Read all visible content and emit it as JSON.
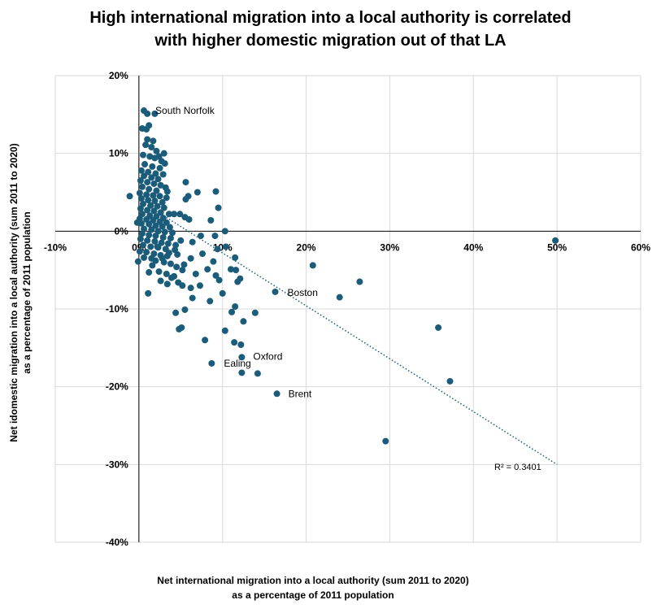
{
  "title": {
    "line1": "High international migration into a local authority is correlated",
    "line2": "with higher domestic migration out of that LA"
  },
  "chart_data": {
    "type": "scatter",
    "title": "High international migration into a local authority is correlated with higher domestic migration out of that LA",
    "xlabel": [
      "Net international migration into a local authority (sum 2011 to 2020)",
      "as a percentage of 2011 population"
    ],
    "ylabel": [
      "Net idomestic migration into a local authority (sum 2011 to 2020)",
      "as a percentage of 2011 population"
    ],
    "xlim": [
      -10,
      60
    ],
    "ylim": [
      -40,
      20
    ],
    "x_ticks": [
      -10,
      0,
      10,
      20,
      30,
      40,
      50,
      60
    ],
    "y_ticks": [
      -40,
      -30,
      -20,
      -10,
      0,
      10,
      20
    ],
    "x_tick_labels": [
      "-10%",
      "0%",
      "10%",
      "20%",
      "30%",
      "40%",
      "50%",
      "60%"
    ],
    "y_tick_labels": [
      "-40%",
      "-30%",
      "-20%",
      "-10%",
      "0%",
      "10%",
      "20%"
    ],
    "grid": true,
    "point_color": "#1a5c7a",
    "trendline": {
      "color": "#1a5c7a",
      "style": "dotted",
      "x": [
        0,
        50
      ],
      "y": [
        4,
        -30
      ],
      "r2_label": "R² = 0.3401"
    },
    "annotations": [
      {
        "text": "South Norfolk",
        "x": 0.6,
        "y": 15.5
      },
      {
        "text": "Boston",
        "x": 16.4,
        "y": -7.9
      },
      {
        "text": "Oxford",
        "x": 12.3,
        "y": -16.3
      },
      {
        "text": "Ealing",
        "x": 8.8,
        "y": -17.0
      },
      {
        "text": "Brent",
        "x": 16.5,
        "y": -20.9
      }
    ],
    "points": [
      [
        0.6,
        15.5
      ],
      [
        1.0,
        15.1
      ],
      [
        1.9,
        15.1
      ],
      [
        1.2,
        13.6
      ],
      [
        0.4,
        13.2
      ],
      [
        0.9,
        13.1
      ],
      [
        1.0,
        11.8
      ],
      [
        1.7,
        11.6
      ],
      [
        0.8,
        11.1
      ],
      [
        1.5,
        10.8
      ],
      [
        2.1,
        10.3
      ],
      [
        3.0,
        10.0
      ],
      [
        2.4,
        9.6
      ],
      [
        0.5,
        9.8
      ],
      [
        1.3,
        9.6
      ],
      [
        1.9,
        9.4
      ],
      [
        2.7,
        9.0
      ],
      [
        3.1,
        8.7
      ],
      [
        0.7,
        8.6
      ],
      [
        1.6,
        8.3
      ],
      [
        2.5,
        8.1
      ],
      [
        0.3,
        7.8
      ],
      [
        1.1,
        7.6
      ],
      [
        2.0,
        7.4
      ],
      [
        2.9,
        7.3
      ],
      [
        0.6,
        7.1
      ],
      [
        1.5,
        6.9
      ],
      [
        2.3,
        6.7
      ],
      [
        0.2,
        6.5
      ],
      [
        1.0,
        6.3
      ],
      [
        1.8,
        6.1
      ],
      [
        2.6,
        5.9
      ],
      [
        3.2,
        5.6
      ],
      [
        0.4,
        5.7
      ],
      [
        1.2,
        5.4
      ],
      [
        2.1,
        5.2
      ],
      [
        3.4,
        5.1
      ],
      [
        0.1,
        4.9
      ],
      [
        0.9,
        4.7
      ],
      [
        1.7,
        4.6
      ],
      [
        2.5,
        4.5
      ],
      [
        3.3,
        4.3
      ],
      [
        -1.1,
        4.5
      ],
      [
        0.3,
        4.2
      ],
      [
        1.1,
        4.0
      ],
      [
        1.9,
        3.9
      ],
      [
        2.8,
        3.7
      ],
      [
        0.5,
        3.5
      ],
      [
        1.4,
        3.3
      ],
      [
        2.2,
        3.2
      ],
      [
        3.0,
        3.0
      ],
      [
        0.2,
        2.9
      ],
      [
        1.0,
        2.7
      ],
      [
        1.8,
        2.6
      ],
      [
        2.6,
        2.4
      ],
      [
        3.6,
        2.2
      ],
      [
        0.4,
        2.2
      ],
      [
        1.3,
        2.0
      ],
      [
        2.1,
        1.9
      ],
      [
        2.9,
        1.7
      ],
      [
        0.1,
        1.6
      ],
      [
        0.9,
        1.5
      ],
      [
        1.7,
        1.4
      ],
      [
        2.5,
        1.2
      ],
      [
        3.3,
        1.1
      ],
      [
        0.3,
        1.0
      ],
      [
        1.2,
        0.9
      ],
      [
        2.0,
        0.7
      ],
      [
        2.8,
        0.6
      ],
      [
        3.7,
        0.5
      ],
      [
        -0.2,
        1.1
      ],
      [
        0.6,
        0.3
      ],
      [
        1.5,
        0.2
      ],
      [
        2.3,
        0.0
      ],
      [
        3.1,
        -0.1
      ],
      [
        4.0,
        -0.2
      ],
      [
        0.4,
        -0.3
      ],
      [
        1.2,
        -0.5
      ],
      [
        2.0,
        -0.6
      ],
      [
        2.9,
        -0.8
      ],
      [
        3.8,
        -0.9
      ],
      [
        0.2,
        -1.0
      ],
      [
        1.0,
        -1.2
      ],
      [
        1.9,
        -1.3
      ],
      [
        2.7,
        -1.5
      ],
      [
        3.5,
        -1.6
      ],
      [
        0.5,
        -1.8
      ],
      [
        1.4,
        -2.0
      ],
      [
        2.3,
        -2.1
      ],
      [
        3.2,
        -2.3
      ],
      [
        4.3,
        -2.4
      ],
      [
        0.1,
        -2.6
      ],
      [
        0.9,
        -2.7
      ],
      [
        1.8,
        -2.9
      ],
      [
        2.6,
        -3.1
      ],
      [
        3.4,
        -3.2
      ],
      [
        4.6,
        -3.0
      ],
      [
        0.6,
        -3.4
      ],
      [
        1.5,
        -3.5
      ],
      [
        -0.1,
        -3.9
      ],
      [
        3.0,
        -4.0
      ],
      [
        3.8,
        -4.2
      ],
      [
        4.5,
        -4.6
      ],
      [
        5.2,
        -5.0
      ],
      [
        2.4,
        -5.2
      ],
      [
        3.3,
        -5.5
      ],
      [
        1.2,
        -5.3
      ],
      [
        3.9,
        -6.0
      ],
      [
        2.6,
        -6.4
      ],
      [
        4.7,
        -6.6
      ],
      [
        3.4,
        -6.8
      ],
      [
        1.1,
        -8.0
      ],
      [
        2.2,
        -2.0
      ],
      [
        2.8,
        -3.5
      ],
      [
        1.6,
        -4.4
      ],
      [
        4.2,
        -5.8
      ],
      [
        5.0,
        -1.2
      ],
      [
        3.6,
        -2.8
      ],
      [
        2.0,
        -3.8
      ],
      [
        4.4,
        -1.8
      ],
      [
        5.6,
        6.3
      ],
      [
        5.9,
        4.5
      ],
      [
        7.0,
        5.0
      ],
      [
        5.6,
        4.1
      ],
      [
        4.2,
        2.2
      ],
      [
        4.9,
        2.2
      ],
      [
        5.5,
        1.8
      ],
      [
        6.0,
        1.5
      ],
      [
        9.2,
        5.1
      ],
      [
        9.5,
        3.0
      ],
      [
        8.6,
        1.4
      ],
      [
        9.1,
        -0.6
      ],
      [
        10.3,
        0.0
      ],
      [
        7.4,
        -0.6
      ],
      [
        6.4,
        -1.4
      ],
      [
        7.6,
        -2.9
      ],
      [
        6.2,
        -3.5
      ],
      [
        5.4,
        -4.3
      ],
      [
        6.8,
        -5.5
      ],
      [
        8.2,
        -4.9
      ],
      [
        8.9,
        -3.9
      ],
      [
        9.4,
        -2.3
      ],
      [
        10.4,
        -2.0
      ],
      [
        11.5,
        -3.4
      ],
      [
        11.0,
        -4.9
      ],
      [
        11.6,
        -5.0
      ],
      [
        9.2,
        -5.7
      ],
      [
        9.6,
        -6.3
      ],
      [
        11.8,
        -6.5
      ],
      [
        12.1,
        -6.1
      ],
      [
        7.3,
        -7.0
      ],
      [
        5.2,
        -7.0
      ],
      [
        6.2,
        -7.3
      ],
      [
        10.0,
        -8.0
      ],
      [
        8.5,
        -9.0
      ],
      [
        6.4,
        -8.6
      ],
      [
        5.5,
        -10.1
      ],
      [
        4.4,
        -10.5
      ],
      [
        11.1,
        -10.4
      ],
      [
        11.5,
        -9.7
      ],
      [
        13.9,
        -10.5
      ],
      [
        12.5,
        -11.6
      ],
      [
        4.8,
        -12.6
      ],
      [
        5.1,
        -12.4
      ],
      [
        10.3,
        -12.8
      ],
      [
        7.9,
        -14.0
      ],
      [
        11.4,
        -14.3
      ],
      [
        12.2,
        -14.6
      ],
      [
        12.3,
        -16.2
      ],
      [
        8.7,
        -17.0
      ],
      [
        12.3,
        -18.2
      ],
      [
        14.2,
        -18.3
      ],
      [
        16.5,
        -20.9
      ],
      [
        16.3,
        -7.8
      ],
      [
        20.8,
        -4.4
      ],
      [
        24.0,
        -8.5
      ],
      [
        26.4,
        -6.5
      ],
      [
        29.5,
        -27.0
      ],
      [
        35.8,
        -12.4
      ],
      [
        37.2,
        -19.3
      ],
      [
        49.8,
        -1.2
      ]
    ]
  }
}
